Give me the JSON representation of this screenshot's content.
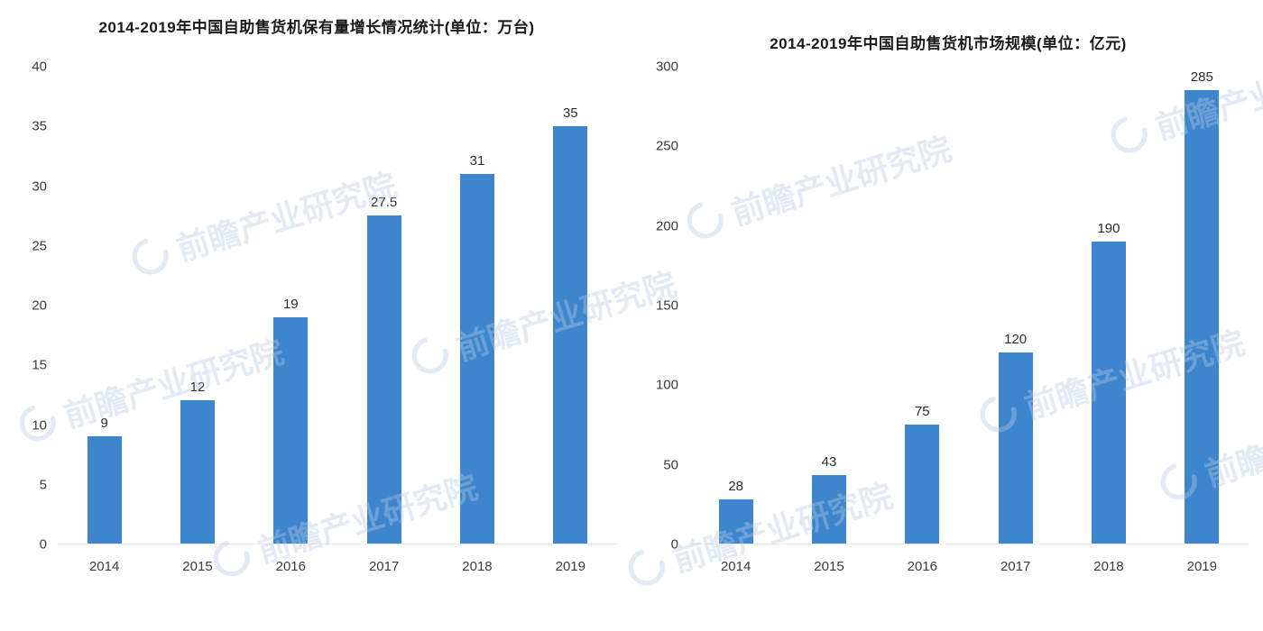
{
  "watermark": {
    "text": "前瞻产业研究院",
    "color": "#b7c9e4"
  },
  "chart_data": [
    {
      "type": "bar",
      "title": "2014-2019年中国自助售货机保有量增长情况统计(单位：万台)",
      "categories": [
        "2014",
        "2015",
        "2016",
        "2017",
        "2018",
        "2019"
      ],
      "values": [
        9,
        12,
        19,
        27.5,
        31,
        35
      ],
      "xlabel": "",
      "ylabel": "",
      "ylim": [
        0,
        40
      ],
      "yticks": [
        0,
        5,
        10,
        15,
        20,
        25,
        30,
        35,
        40
      ],
      "bar_color": "#3d86cd",
      "grid": false,
      "legend_position": "none",
      "value_labels": true
    },
    {
      "type": "bar",
      "title": "2014-2019年中国自助售货机市场规模(单位：亿元)",
      "categories": [
        "2014",
        "2015",
        "2016",
        "2017",
        "2018",
        "2019"
      ],
      "values": [
        28,
        43,
        75,
        120,
        190,
        285
      ],
      "xlabel": "",
      "ylabel": "",
      "ylim": [
        0,
        300
      ],
      "yticks": [
        0,
        50,
        100,
        150,
        200,
        250,
        300
      ],
      "bar_color": "#3d86cd",
      "grid": false,
      "legend_position": "none",
      "value_labels": true
    }
  ]
}
